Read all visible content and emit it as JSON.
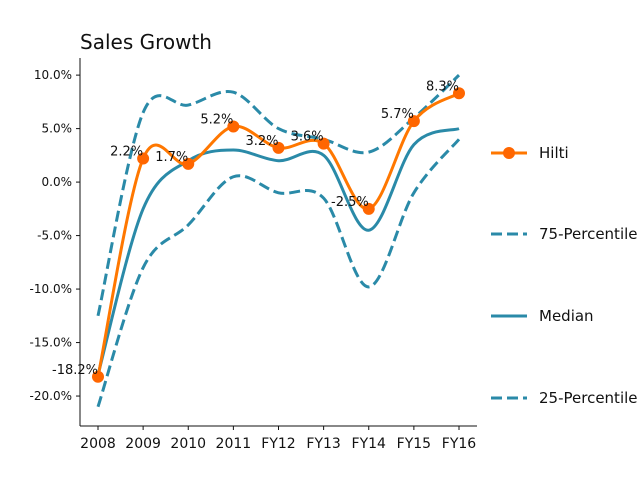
{
  "chart_data": {
    "type": "line",
    "title": "Sales Growth",
    "categories": [
      "2008",
      "2009",
      "2010",
      "2011",
      "FY12",
      "FY13",
      "FY14",
      "FY15",
      "FY16"
    ],
    "ylim": [
      -22.8,
      11.6
    ],
    "yticks": [
      -20,
      -15,
      -10,
      -5,
      0,
      5,
      10
    ],
    "ytick_labels": [
      "-20.0%",
      "-15.0%",
      "-10.0%",
      "-5.0%",
      "0.0%",
      "5.0%",
      "10.0%"
    ],
    "grid": false,
    "legend_position": "right",
    "series": [
      {
        "name": "Hilti",
        "color": "#ff7700",
        "marker_color": "#ff6600",
        "style": "solid-markers",
        "values": [
          -18.2,
          2.2,
          1.7,
          5.2,
          3.2,
          3.6,
          -2.5,
          5.7,
          8.3
        ],
        "labels": [
          "-18.2%",
          "2.2%",
          "1.7%",
          "5.2%",
          "3.2%",
          "3.6%",
          "-2.5%",
          "5.7%",
          "8.3%"
        ]
      },
      {
        "name": "75-Percentile",
        "color": "#2a8aa8",
        "style": "dashed",
        "values": [
          -12.5,
          6.5,
          7.2,
          8.4,
          5.0,
          4.0,
          2.8,
          6.0,
          10.0
        ]
      },
      {
        "name": "Median",
        "color": "#2a8aa8",
        "style": "solid",
        "values": [
          -18.0,
          -2.5,
          2.0,
          3.0,
          2.0,
          2.5,
          -4.5,
          3.5,
          5.0
        ]
      },
      {
        "name": "25-Percentile",
        "color": "#2a8aa8",
        "style": "dashed",
        "values": [
          -21.0,
          -8.0,
          -4.0,
          0.5,
          -1.0,
          -1.5,
          -9.8,
          -1.0,
          4.0
        ]
      }
    ]
  }
}
